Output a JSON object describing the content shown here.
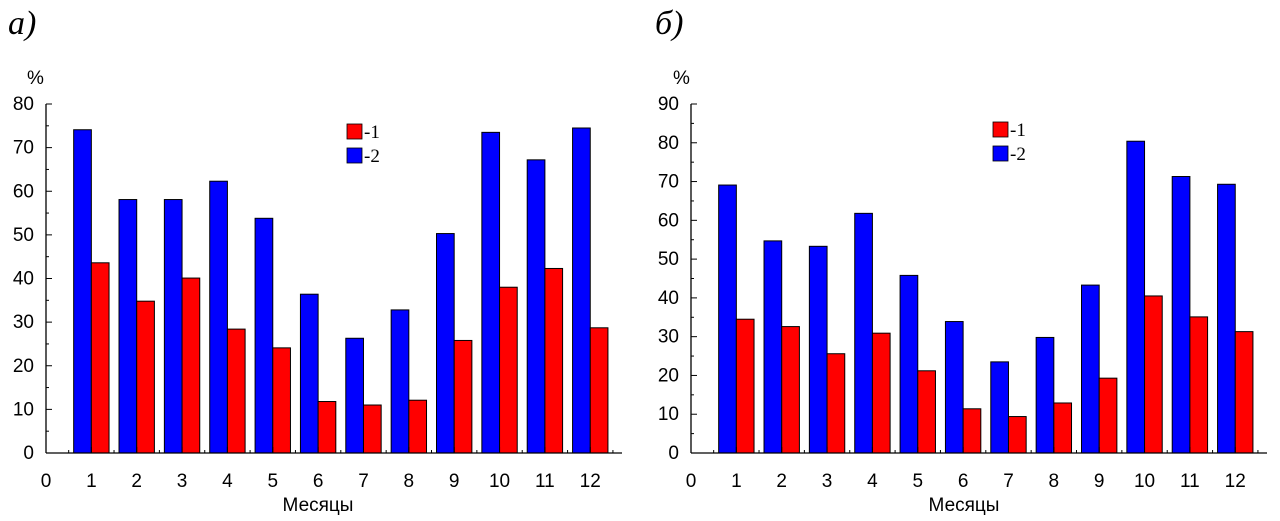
{
  "chart_data": [
    {
      "type": "bar",
      "title": "а)",
      "xlabel": "Месяцы",
      "ylabel": "%",
      "ylim": [
        0,
        80
      ],
      "yticks": [
        "0",
        "10",
        "20",
        "30",
        "40",
        "50",
        "60",
        "70",
        "80"
      ],
      "xlim": [
        0,
        12.7
      ],
      "xticks": [
        "0",
        "1",
        "2",
        "3",
        "4",
        "5",
        "6",
        "7",
        "8",
        "9",
        "10",
        "11",
        "12"
      ],
      "categories": [
        "1",
        "2",
        "3",
        "4",
        "5",
        "6",
        "7",
        "8",
        "9",
        "10",
        "11",
        "12"
      ],
      "legend": {
        "position": "top-right"
      },
      "series": [
        {
          "name": "-1",
          "color": "#ff0000",
          "values": [
            43.6,
            34.8,
            40.1,
            28.4,
            24.1,
            11.8,
            11.0,
            12.1,
            25.8,
            38.0,
            42.3,
            28.7
          ]
        },
        {
          "name": "-2",
          "color": "#0000ff",
          "values": [
            74.1,
            58.1,
            58.1,
            62.3,
            53.8,
            36.4,
            26.3,
            32.8,
            50.3,
            73.5,
            67.2,
            74.5
          ]
        }
      ]
    },
    {
      "type": "bar",
      "title": "б)",
      "xlabel": "Месяцы",
      "ylabel": "%",
      "ylim": [
        0,
        90
      ],
      "yticks": [
        "0",
        "10",
        "20",
        "30",
        "40",
        "50",
        "60",
        "70",
        "80",
        "90"
      ],
      "xlim": [
        0,
        12.7
      ],
      "xticks": [
        "0",
        "1",
        "2",
        "3",
        "4",
        "5",
        "6",
        "7",
        "8",
        "9",
        "10",
        "11",
        "12"
      ],
      "categories": [
        "1",
        "2",
        "3",
        "4",
        "5",
        "6",
        "7",
        "8",
        "9",
        "10",
        "11",
        "12"
      ],
      "legend": {
        "position": "top-right"
      },
      "series": [
        {
          "name": "-1",
          "color": "#ff0000",
          "values": [
            34.5,
            32.6,
            25.6,
            30.9,
            21.2,
            11.4,
            9.4,
            12.9,
            19.3,
            40.5,
            35.1,
            31.3
          ]
        },
        {
          "name": "-2",
          "color": "#0000ff",
          "values": [
            69.1,
            54.7,
            53.3,
            61.8,
            45.8,
            33.9,
            23.5,
            29.8,
            43.3,
            80.4,
            71.3,
            69.3
          ]
        }
      ]
    }
  ]
}
